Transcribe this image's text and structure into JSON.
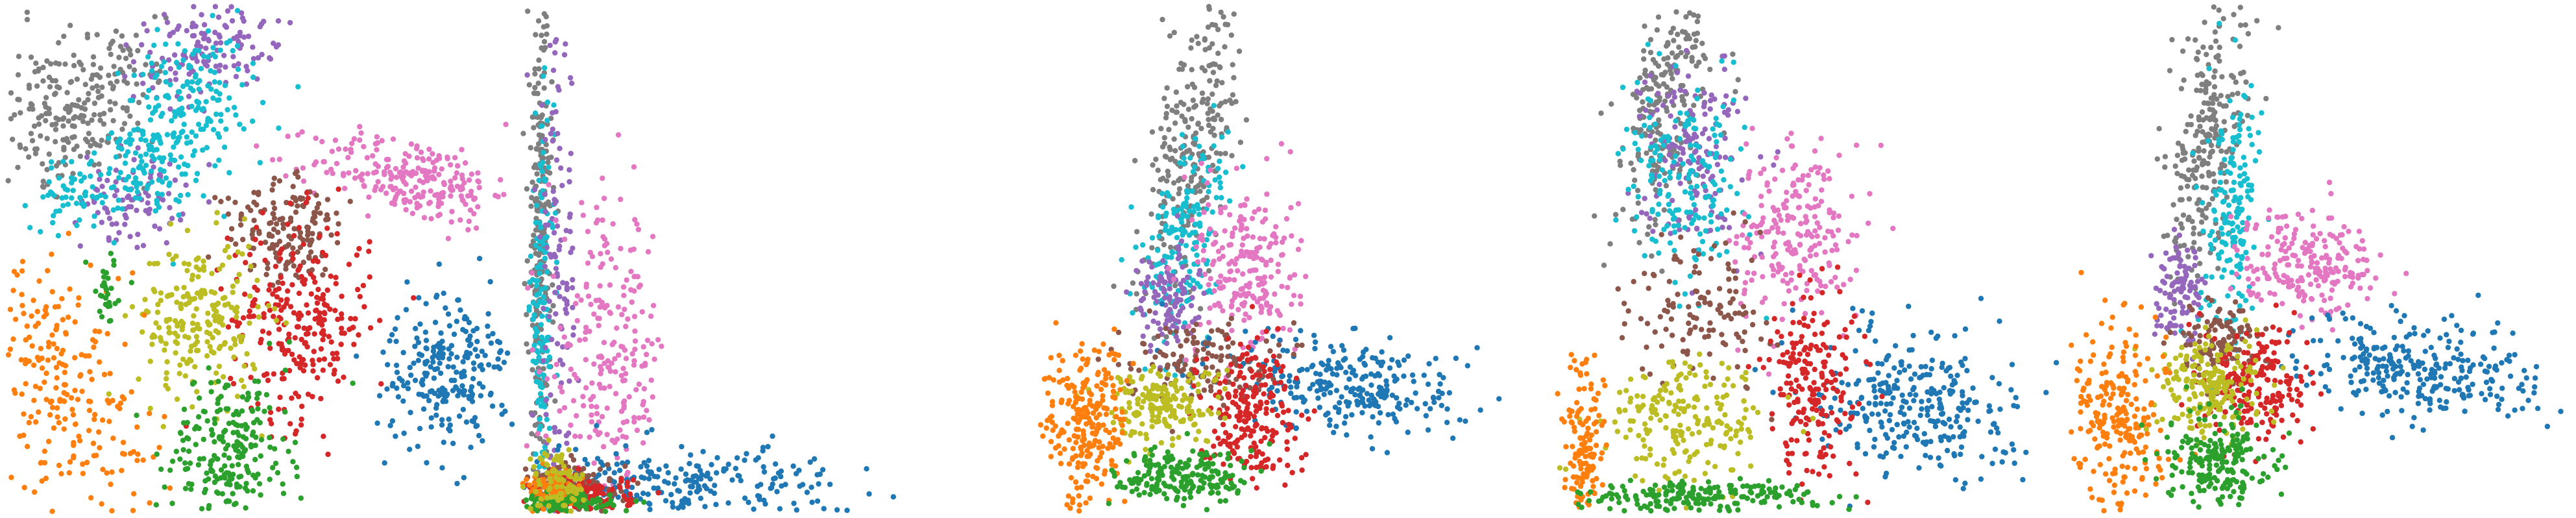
{
  "figure": {
    "palette": {
      "blue": "#1f77b4",
      "orange": "#ff7f0e",
      "green": "#2ca02c",
      "red": "#d62728",
      "purple": "#9467bd",
      "brown": "#8c564b",
      "pink": "#e377c2",
      "gray": "#7f7f7f",
      "olive": "#bcbd22",
      "cyan": "#17becf"
    }
  },
  "chart_data": [
    {
      "type": "scatter",
      "title": "",
      "xlabel": "",
      "ylabel": "",
      "axes_visible": false,
      "grid": false,
      "legend": "none",
      "xlim": [
        0,
        1
      ],
      "ylim": [
        0,
        1
      ],
      "clusters": [
        {
          "color": "gray",
          "cx": 0.14,
          "cy": 0.8,
          "sx": 0.07,
          "sy": 0.1,
          "rot": -30,
          "n": 240
        },
        {
          "color": "purple",
          "cx": 0.4,
          "cy": 0.92,
          "sx": 0.07,
          "sy": 0.05,
          "rot": 20,
          "n": 140
        },
        {
          "color": "cyan",
          "cx": 0.37,
          "cy": 0.82,
          "sx": 0.07,
          "sy": 0.06,
          "rot": 25,
          "n": 150
        },
        {
          "color": "purple",
          "cx": 0.25,
          "cy": 0.62,
          "sx": 0.05,
          "sy": 0.05,
          "rot": 0,
          "n": 90
        },
        {
          "color": "cyan",
          "cx": 0.28,
          "cy": 0.68,
          "sx": 0.07,
          "sy": 0.05,
          "rot": 25,
          "n": 130
        },
        {
          "color": "cyan",
          "cx": 0.13,
          "cy": 0.62,
          "sx": 0.04,
          "sy": 0.03,
          "rot": 0,
          "n": 50
        },
        {
          "color": "pink",
          "cx": 0.8,
          "cy": 0.66,
          "sx": 0.1,
          "sy": 0.04,
          "rot": -10,
          "n": 240
        },
        {
          "color": "brown",
          "cx": 0.56,
          "cy": 0.56,
          "sx": 0.06,
          "sy": 0.05,
          "rot": -25,
          "n": 160
        },
        {
          "color": "red",
          "cx": 0.58,
          "cy": 0.38,
          "sx": 0.07,
          "sy": 0.1,
          "rot": 0,
          "n": 260
        },
        {
          "color": "olive",
          "cx": 0.38,
          "cy": 0.38,
          "sx": 0.06,
          "sy": 0.08,
          "rot": 0,
          "n": 220
        },
        {
          "color": "blue",
          "cx": 0.87,
          "cy": 0.28,
          "sx": 0.06,
          "sy": 0.08,
          "rot": -15,
          "n": 240
        },
        {
          "color": "orange",
          "cx": 0.12,
          "cy": 0.24,
          "sx": 0.07,
          "sy": 0.15,
          "rot": 20,
          "n": 240
        },
        {
          "color": "green",
          "cx": 0.44,
          "cy": 0.12,
          "sx": 0.06,
          "sy": 0.08,
          "rot": -10,
          "n": 230
        },
        {
          "color": "green",
          "cx": 0.2,
          "cy": 0.43,
          "sx": 0.02,
          "sy": 0.04,
          "rot": 0,
          "n": 30
        }
      ]
    },
    {
      "type": "scatter",
      "title": "",
      "xlabel": "",
      "ylabel": "",
      "axes_visible": false,
      "grid": false,
      "legend": "none",
      "xlim": [
        0,
        1
      ],
      "ylim": [
        0,
        1
      ],
      "clusters": [
        {
          "color": "gray",
          "cx": 0.035,
          "cy": 0.55,
          "sx": 0.012,
          "sy": 0.25,
          "rot": 0,
          "n": 260
        },
        {
          "color": "cyan",
          "cx": 0.04,
          "cy": 0.4,
          "sx": 0.012,
          "sy": 0.18,
          "rot": 0,
          "n": 150
        },
        {
          "color": "purple",
          "cx": 0.07,
          "cy": 0.45,
          "sx": 0.02,
          "sy": 0.25,
          "rot": 0,
          "n": 120
        },
        {
          "color": "pink",
          "cx": 0.17,
          "cy": 0.3,
          "sx": 0.06,
          "sy": 0.15,
          "rot": 0,
          "n": 240
        },
        {
          "color": "blue",
          "cx": 0.3,
          "cy": 0.05,
          "sx": 0.17,
          "sy": 0.04,
          "rot": 0,
          "n": 280
        },
        {
          "color": "brown",
          "cx": 0.1,
          "cy": 0.05,
          "sx": 0.05,
          "sy": 0.025,
          "rot": 0,
          "n": 140
        },
        {
          "color": "red",
          "cx": 0.12,
          "cy": 0.03,
          "sx": 0.05,
          "sy": 0.02,
          "rot": 0,
          "n": 150
        },
        {
          "color": "orange",
          "cx": 0.06,
          "cy": 0.04,
          "sx": 0.03,
          "sy": 0.02,
          "rot": 0,
          "n": 100
        },
        {
          "color": "green",
          "cx": 0.08,
          "cy": 0.015,
          "sx": 0.05,
          "sy": 0.01,
          "rot": 0,
          "n": 120
        },
        {
          "color": "olive",
          "cx": 0.07,
          "cy": 0.06,
          "sx": 0.03,
          "sy": 0.03,
          "rot": 0,
          "n": 80
        }
      ]
    },
    {
      "type": "scatter",
      "title": "",
      "xlabel": "",
      "ylabel": "",
      "axes_visible": false,
      "grid": false,
      "legend": "none",
      "xlim": [
        0,
        1
      ],
      "ylim": [
        0,
        1
      ],
      "clusters": [
        {
          "color": "gray",
          "cx": 0.31,
          "cy": 0.72,
          "sx": 0.04,
          "sy": 0.15,
          "rot": -10,
          "n": 260
        },
        {
          "color": "cyan",
          "cx": 0.3,
          "cy": 0.55,
          "sx": 0.04,
          "sy": 0.1,
          "rot": -10,
          "n": 180
        },
        {
          "color": "purple",
          "cx": 0.26,
          "cy": 0.42,
          "sx": 0.03,
          "sy": 0.05,
          "rot": 0,
          "n": 110
        },
        {
          "color": "pink",
          "cx": 0.42,
          "cy": 0.48,
          "sx": 0.05,
          "sy": 0.09,
          "rot": 0,
          "n": 220
        },
        {
          "color": "blue",
          "cx": 0.62,
          "cy": 0.25,
          "sx": 0.12,
          "sy": 0.05,
          "rot": -8,
          "n": 280
        },
        {
          "color": "brown",
          "cx": 0.32,
          "cy": 0.3,
          "sx": 0.07,
          "sy": 0.04,
          "rot": 0,
          "n": 130
        },
        {
          "color": "red",
          "cx": 0.42,
          "cy": 0.2,
          "sx": 0.05,
          "sy": 0.07,
          "rot": 0,
          "n": 220
        },
        {
          "color": "olive",
          "cx": 0.25,
          "cy": 0.21,
          "sx": 0.06,
          "sy": 0.04,
          "rot": 0,
          "n": 180
        },
        {
          "color": "orange",
          "cx": 0.1,
          "cy": 0.17,
          "sx": 0.04,
          "sy": 0.08,
          "rot": 0,
          "n": 240
        },
        {
          "color": "green",
          "cx": 0.3,
          "cy": 0.07,
          "sx": 0.07,
          "sy": 0.03,
          "rot": 0,
          "n": 200
        }
      ]
    },
    {
      "type": "scatter",
      "title": "",
      "xlabel": "",
      "ylabel": "",
      "axes_visible": false,
      "grid": false,
      "legend": "none",
      "xlim": [
        0,
        1
      ],
      "ylim": [
        0,
        1
      ],
      "clusters": [
        {
          "color": "gray",
          "cx": 0.22,
          "cy": 0.8,
          "sx": 0.04,
          "sy": 0.13,
          "rot": -15,
          "n": 240
        },
        {
          "color": "purple",
          "cx": 0.28,
          "cy": 0.72,
          "sx": 0.05,
          "sy": 0.1,
          "rot": 0,
          "n": 150
        },
        {
          "color": "cyan",
          "cx": 0.26,
          "cy": 0.64,
          "sx": 0.06,
          "sy": 0.09,
          "rot": 0,
          "n": 180
        },
        {
          "color": "pink",
          "cx": 0.48,
          "cy": 0.55,
          "sx": 0.06,
          "sy": 0.09,
          "rot": 0,
          "n": 220
        },
        {
          "color": "blue",
          "cx": 0.72,
          "cy": 0.22,
          "sx": 0.1,
          "sy": 0.07,
          "rot": -10,
          "n": 300
        },
        {
          "color": "brown",
          "cx": 0.3,
          "cy": 0.4,
          "sx": 0.07,
          "sy": 0.07,
          "rot": 0,
          "n": 120
        },
        {
          "color": "red",
          "cx": 0.52,
          "cy": 0.25,
          "sx": 0.05,
          "sy": 0.1,
          "rot": 0,
          "n": 200
        },
        {
          "color": "olive",
          "cx": 0.27,
          "cy": 0.18,
          "sx": 0.08,
          "sy": 0.06,
          "rot": 0,
          "n": 200
        },
        {
          "color": "orange",
          "cx": 0.06,
          "cy": 0.12,
          "sx": 0.02,
          "sy": 0.1,
          "rot": 0,
          "n": 140
        },
        {
          "color": "green",
          "cx": 0.28,
          "cy": 0.03,
          "sx": 0.12,
          "sy": 0.015,
          "rot": 0,
          "n": 200
        }
      ]
    },
    {
      "type": "scatter",
      "title": "",
      "xlabel": "",
      "ylabel": "",
      "axes_visible": false,
      "grid": false,
      "legend": "none",
      "xlim": [
        0,
        1
      ],
      "ylim": [
        0,
        1
      ],
      "clusters": [
        {
          "color": "gray",
          "cx": 0.27,
          "cy": 0.72,
          "sx": 0.035,
          "sy": 0.15,
          "rot": -8,
          "n": 260
        },
        {
          "color": "cyan",
          "cx": 0.33,
          "cy": 0.58,
          "sx": 0.03,
          "sy": 0.12,
          "rot": -5,
          "n": 170
        },
        {
          "color": "purple",
          "cx": 0.22,
          "cy": 0.42,
          "sx": 0.025,
          "sy": 0.05,
          "rot": 0,
          "n": 100
        },
        {
          "color": "pink",
          "cx": 0.48,
          "cy": 0.5,
          "sx": 0.07,
          "sy": 0.05,
          "rot": -15,
          "n": 220
        },
        {
          "color": "blue",
          "cx": 0.7,
          "cy": 0.28,
          "sx": 0.12,
          "sy": 0.05,
          "rot": -8,
          "n": 280
        },
        {
          "color": "brown",
          "cx": 0.3,
          "cy": 0.33,
          "sx": 0.04,
          "sy": 0.04,
          "rot": 0,
          "n": 120
        },
        {
          "color": "red",
          "cx": 0.38,
          "cy": 0.25,
          "sx": 0.05,
          "sy": 0.06,
          "rot": 0,
          "n": 200
        },
        {
          "color": "olive",
          "cx": 0.28,
          "cy": 0.25,
          "sx": 0.05,
          "sy": 0.05,
          "rot": 0,
          "n": 200
        },
        {
          "color": "orange",
          "cx": 0.1,
          "cy": 0.18,
          "sx": 0.05,
          "sy": 0.1,
          "rot": 0,
          "n": 240
        },
        {
          "color": "green",
          "cx": 0.3,
          "cy": 0.1,
          "sx": 0.05,
          "sy": 0.05,
          "rot": 0,
          "n": 200
        }
      ]
    }
  ]
}
